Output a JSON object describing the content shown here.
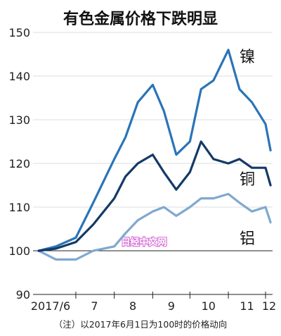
{
  "chart_data": {
    "type": "line",
    "title": "有色金属价格下跌明显",
    "note": "（注）以2017年6月1日为100时的价格动向",
    "watermark": "日经中文网",
    "ylim": [
      90,
      150
    ],
    "yticks": [
      90,
      100,
      110,
      120,
      130,
      140,
      150
    ],
    "reference_line": 100,
    "x_tick_labels": [
      "2017/6",
      "7",
      "8",
      "9",
      "10",
      "11",
      "12"
    ],
    "x": [
      "2017-06-01",
      "2017-06-15",
      "2017-07-01",
      "2017-07-15",
      "2017-08-01",
      "2017-08-10",
      "2017-08-20",
      "2017-09-01",
      "2017-09-10",
      "2017-09-20",
      "2017-10-01",
      "2017-10-10",
      "2017-10-20",
      "2017-11-01",
      "2017-11-10",
      "2017-11-20",
      "2017-12-01",
      "2017-12-05"
    ],
    "series": [
      {
        "name": "镍",
        "color": "#2a74b8",
        "values": [
          100,
          101,
          103,
          111,
          121,
          126,
          134,
          138,
          132,
          122,
          125,
          137,
          139,
          146,
          137,
          134,
          129,
          123
        ]
      },
      {
        "name": "铜",
        "color": "#143a66",
        "values": [
          100,
          100.5,
          102,
          106,
          112,
          117,
          120,
          122,
          118,
          114,
          118,
          125,
          121,
          120,
          121,
          119,
          119,
          115
        ]
      },
      {
        "name": "铝",
        "color": "#7fa8d0",
        "values": [
          100,
          98,
          98,
          100,
          101,
          104,
          107,
          109,
          110,
          108,
          110,
          112,
          112,
          113,
          111,
          109,
          110,
          106.5
        ]
      }
    ]
  }
}
